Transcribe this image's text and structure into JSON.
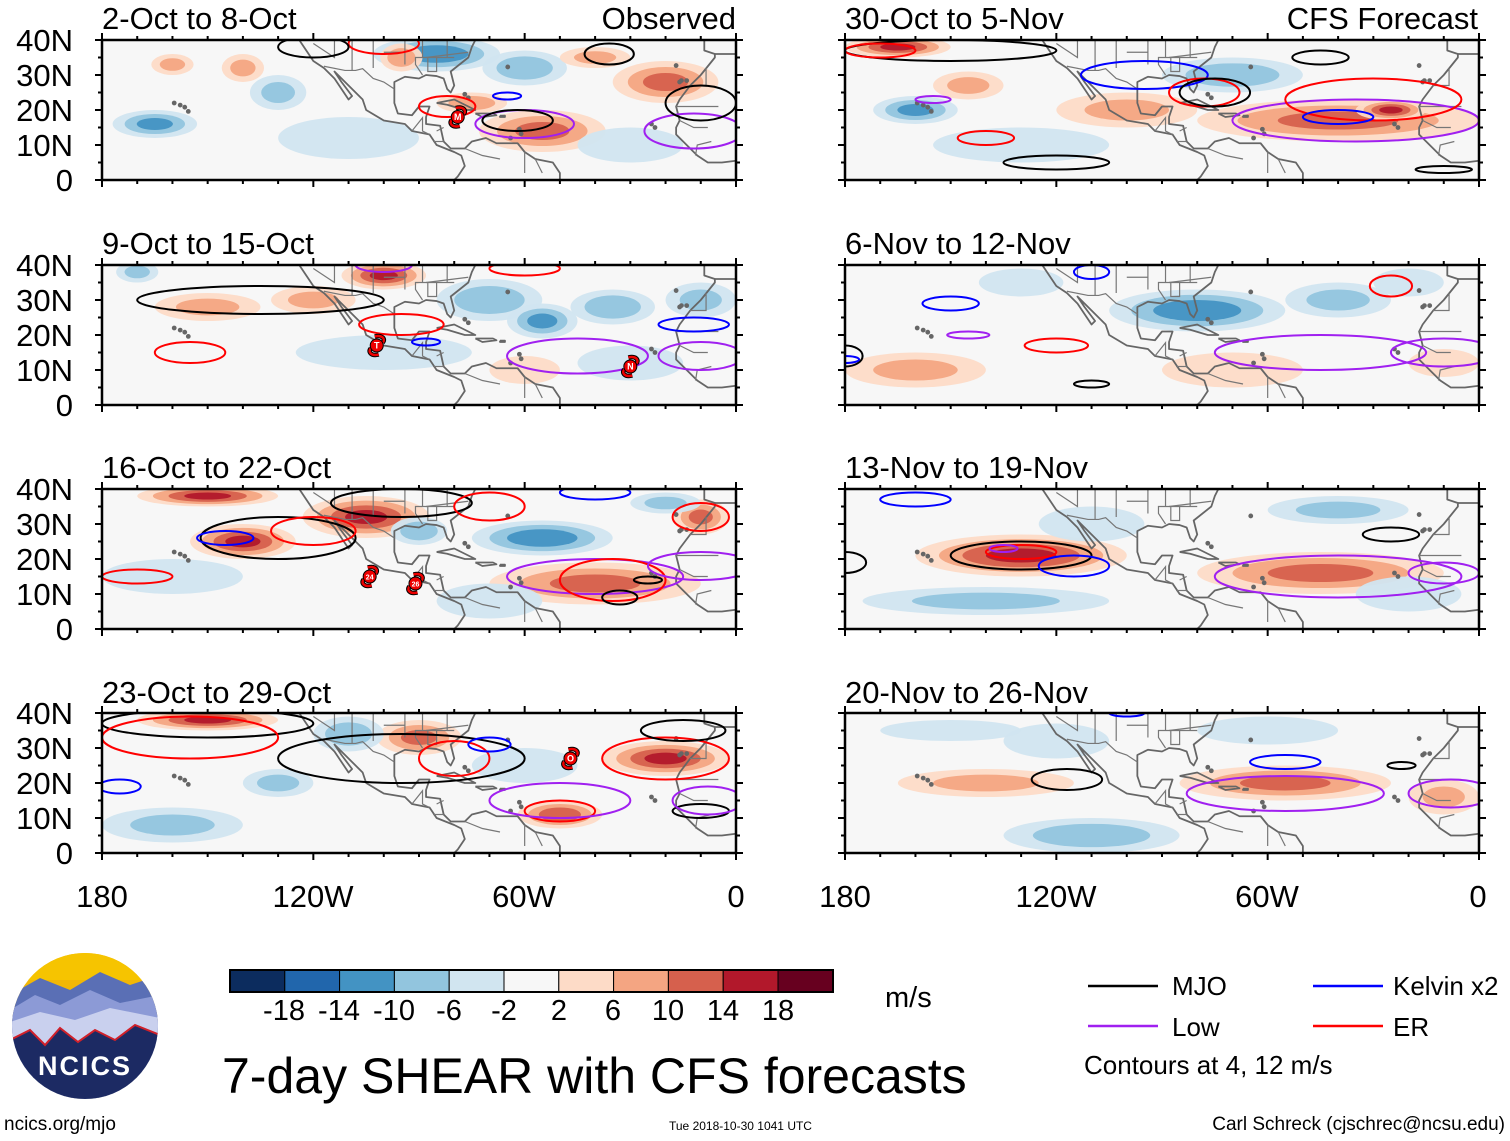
{
  "figure": {
    "title": "7-day SHEAR with CFS forecasts",
    "source_link": "ncics.org/mjo",
    "timestamp": "Tue 2018-10-30 1041 UTC",
    "author": "Carl Schreck (cjschrec@ncsu.edu)",
    "logo_text": "NCICS",
    "observed_label": "Observed",
    "forecast_label": "CFS Forecast"
  },
  "axes": {
    "y_labels": [
      "40N",
      "30N",
      "20N",
      "10N",
      "0"
    ],
    "x_labels": [
      "180",
      "120W",
      "60W",
      "0"
    ]
  },
  "colorbar": {
    "unit": "m/s",
    "labels": [
      "-18",
      "-14",
      "-10",
      "-6",
      "-2",
      "2",
      "6",
      "10",
      "14",
      "18"
    ],
    "colors": [
      "#0c2c5e",
      "#2166ac",
      "#4393c3",
      "#92c5de",
      "#d1e5f0",
      "#f7f7f7",
      "#fddbc7",
      "#f4a582",
      "#d6604d",
      "#b2182b",
      "#67001f"
    ]
  },
  "legend": {
    "items": [
      {
        "label": "MJO",
        "color": "#000000"
      },
      {
        "label": "Low",
        "color": "#a020f0"
      },
      {
        "label": "Kelvin x2",
        "color": "#0000ff"
      },
      {
        "label": "ER",
        "color": "#ff0000"
      }
    ],
    "note": "Contours at 4, 12 m/s"
  },
  "chart_data": {
    "type": "heatmap",
    "variable": "7-day vertical wind shear anomaly (m/s)",
    "lon_range": [
      "180",
      "0"
    ],
    "lat_range": [
      "0",
      "40N"
    ],
    "shading_format": "[lonW, lat, half-width deg lon, half-height deg lat, peak value m/s]",
    "contour_format": "[lonW, lat, half-width deg lon, half-height deg lat, filter]",
    "panels": [
      {
        "title": "2-Oct to 8-Oct",
        "shading": [
          [
            85,
            36,
            18,
            5,
            -12
          ],
          [
            60,
            32,
            12,
            5,
            -8
          ],
          [
            165,
            16,
            12,
            4,
            -10
          ],
          [
            130,
            25,
            8,
            5,
            -6
          ],
          [
            55,
            14,
            18,
            6,
            10
          ],
          [
            75,
            22,
            10,
            3,
            8
          ],
          [
            140,
            32,
            6,
            4,
            6
          ],
          [
            160,
            33,
            6,
            3,
            6
          ],
          [
            20,
            28,
            15,
            6,
            10
          ],
          [
            95,
            35,
            6,
            4,
            8
          ],
          [
            110,
            12,
            20,
            6,
            -4
          ],
          [
            40,
            35,
            10,
            3,
            6
          ],
          [
            30,
            10,
            15,
            5,
            -4
          ]
        ],
        "contours": [
          [
            36,
            36,
            7,
            3,
            "MJO"
          ],
          [
            82,
            21,
            8,
            3,
            "ER"
          ],
          [
            60,
            16,
            14,
            4,
            "Low"
          ],
          [
            62,
            17,
            10,
            3,
            "MJO"
          ],
          [
            12,
            14,
            14,
            5,
            "Low"
          ],
          [
            10,
            22,
            10,
            5,
            "MJO"
          ],
          [
            100,
            39,
            10,
            3,
            "ER"
          ],
          [
            120,
            38,
            10,
            3,
            "MJO"
          ],
          [
            65,
            24,
            4,
            1,
            "Kelvin"
          ]
        ],
        "storms": [
          {
            "id": "M",
            "lonW": 79,
            "lat": 18
          }
        ]
      },
      {
        "title": "9-Oct to 15-Oct",
        "shading": [
          [
            100,
            37,
            12,
            4,
            14
          ],
          [
            70,
            30,
            15,
            6,
            -8
          ],
          [
            55,
            24,
            10,
            5,
            -10
          ],
          [
            35,
            28,
            12,
            5,
            -8
          ],
          [
            150,
            28,
            15,
            4,
            6
          ],
          [
            120,
            30,
            12,
            4,
            6
          ],
          [
            100,
            15,
            25,
            5,
            -4
          ],
          [
            30,
            12,
            15,
            5,
            -4
          ],
          [
            170,
            38,
            6,
            3,
            -6
          ],
          [
            10,
            30,
            10,
            5,
            -6
          ],
          [
            60,
            10,
            10,
            4,
            4
          ]
        ],
        "contours": [
          [
            135,
            30,
            35,
            4,
            "MJO"
          ],
          [
            95,
            23,
            12,
            3,
            "ER"
          ],
          [
            155,
            15,
            10,
            3,
            "ER"
          ],
          [
            45,
            14,
            20,
            5,
            "Low"
          ],
          [
            10,
            14,
            12,
            4,
            "Low"
          ],
          [
            12,
            23,
            10,
            2,
            "Kelvin"
          ],
          [
            60,
            39,
            10,
            2,
            "ER"
          ],
          [
            100,
            40,
            8,
            2,
            "Low"
          ],
          [
            88,
            18,
            4,
            1,
            "Kelvin"
          ]
        ],
        "storms": [
          {
            "id": "T",
            "lonW": 102,
            "lat": 17
          },
          {
            "id": "N",
            "lonW": 30,
            "lat": 11
          }
        ]
      },
      {
        "title": "16-Oct to 22-Oct",
        "shading": [
          [
            150,
            38,
            20,
            3,
            14
          ],
          [
            140,
            25,
            15,
            5,
            14
          ],
          [
            105,
            32,
            18,
            6,
            14
          ],
          [
            55,
            26,
            20,
            5,
            -12
          ],
          [
            40,
            13,
            30,
            6,
            10
          ],
          [
            90,
            28,
            8,
            4,
            -8
          ],
          [
            160,
            15,
            20,
            5,
            -4
          ],
          [
            70,
            8,
            15,
            5,
            -4
          ],
          [
            10,
            32,
            8,
            5,
            10
          ],
          [
            20,
            36,
            10,
            3,
            -6
          ]
        ],
        "contours": [
          [
            130,
            26,
            22,
            6,
            "MJO"
          ],
          [
            120,
            28,
            12,
            4,
            "ER"
          ],
          [
            145,
            26,
            8,
            2,
            "Kelvin"
          ],
          [
            95,
            36,
            20,
            4,
            "MJO"
          ],
          [
            40,
            15,
            25,
            5,
            "Low"
          ],
          [
            35,
            14,
            15,
            6,
            "ER"
          ],
          [
            33,
            9,
            5,
            2,
            "MJO"
          ],
          [
            25,
            14,
            4,
            1,
            "MJO"
          ],
          [
            70,
            35,
            10,
            4,
            "ER"
          ],
          [
            40,
            39,
            10,
            2,
            "Kelvin"
          ],
          [
            170,
            15,
            10,
            2,
            "ER"
          ],
          [
            10,
            32,
            8,
            4,
            "ER"
          ],
          [
            10,
            18,
            15,
            4,
            "Low"
          ]
        ],
        "storms": [
          {
            "id": "24",
            "lonW": 104,
            "lat": 15
          },
          {
            "id": "26",
            "lonW": 91,
            "lat": 13
          }
        ]
      },
      {
        "title": "23-Oct to 29-Oct",
        "shading": [
          [
            150,
            38,
            20,
            3,
            14
          ],
          [
            90,
            33,
            12,
            5,
            10
          ],
          [
            20,
            27,
            18,
            5,
            14
          ],
          [
            50,
            11,
            12,
            4,
            12
          ],
          [
            110,
            34,
            10,
            5,
            -8
          ],
          [
            160,
            8,
            20,
            5,
            -6
          ],
          [
            60,
            25,
            15,
            5,
            -4
          ],
          [
            130,
            20,
            10,
            4,
            -6
          ]
        ],
        "contours": [
          [
            95,
            27,
            35,
            7,
            "MJO"
          ],
          [
            150,
            37,
            30,
            4,
            "MJO"
          ],
          [
            155,
            33,
            25,
            6,
            "ER"
          ],
          [
            80,
            27,
            10,
            5,
            "ER"
          ],
          [
            70,
            31,
            6,
            2,
            "Kelvin"
          ],
          [
            50,
            12,
            10,
            3,
            "ER"
          ],
          [
            50,
            15,
            20,
            5,
            "Low"
          ],
          [
            20,
            27,
            18,
            6,
            "ER"
          ],
          [
            10,
            12,
            8,
            2,
            "MJO"
          ],
          [
            15,
            35,
            12,
            3,
            "MJO"
          ],
          [
            175,
            19,
            6,
            2,
            "Kelvin"
          ],
          [
            8,
            15,
            10,
            4,
            "Low"
          ]
        ],
        "storms": [
          {
            "id": "O",
            "lonW": 47,
            "lat": 27
          }
        ]
      },
      {
        "title": "30-Oct to 5-Nov",
        "shading": [
          [
            165,
            38,
            15,
            3,
            14
          ],
          [
            160,
            20,
            12,
            4,
            -10
          ],
          [
            70,
            30,
            20,
            5,
            -8
          ],
          [
            40,
            17,
            40,
            6,
            10
          ],
          [
            25,
            20,
            10,
            3,
            14
          ],
          [
            100,
            20,
            20,
            5,
            6
          ],
          [
            130,
            10,
            25,
            5,
            -4
          ],
          [
            145,
            27,
            10,
            4,
            6
          ]
        ],
        "contours": [
          [
            150,
            37,
            30,
            3,
            "MJO"
          ],
          [
            170,
            37,
            10,
            2,
            "ER"
          ],
          [
            95,
            30,
            18,
            4,
            "Kelvin"
          ],
          [
            78,
            25,
            10,
            4,
            "ER"
          ],
          [
            75,
            25,
            10,
            4,
            "MJO"
          ],
          [
            35,
            17,
            35,
            6,
            "Low"
          ],
          [
            30,
            23,
            25,
            6,
            "ER"
          ],
          [
            40,
            18,
            10,
            2,
            "Kelvin"
          ],
          [
            140,
            12,
            8,
            2,
            "ER"
          ],
          [
            155,
            23,
            5,
            1,
            "Low"
          ],
          [
            45,
            35,
            8,
            2,
            "MJO"
          ],
          [
            120,
            5,
            15,
            2,
            "MJO"
          ],
          [
            10,
            3,
            8,
            1,
            "MJO"
          ]
        ],
        "storms": []
      },
      {
        "title": "6-Nov to 12-Nov",
        "shading": [
          [
            80,
            27,
            25,
            6,
            -12
          ],
          [
            40,
            30,
            15,
            5,
            -6
          ],
          [
            160,
            10,
            20,
            5,
            6
          ],
          [
            70,
            10,
            20,
            5,
            4
          ],
          [
            130,
            35,
            12,
            4,
            -4
          ],
          [
            20,
            35,
            10,
            4,
            -4
          ],
          [
            10,
            12,
            10,
            4,
            4
          ]
        ],
        "contours": [
          [
            150,
            29,
            8,
            2,
            "Kelvin"
          ],
          [
            145,
            20,
            6,
            1,
            "Low"
          ],
          [
            120,
            17,
            9,
            2,
            "ER"
          ],
          [
            45,
            15,
            30,
            5,
            "Low"
          ],
          [
            10,
            15,
            15,
            4,
            "Low"
          ],
          [
            25,
            34,
            6,
            3,
            "ER"
          ],
          [
            180,
            14,
            5,
            3,
            "MJO"
          ],
          [
            180,
            13,
            4,
            1,
            "Kelvin"
          ],
          [
            110,
            6,
            5,
            1,
            "MJO"
          ],
          [
            110,
            38,
            5,
            2,
            "Kelvin"
          ]
        ],
        "storms": []
      },
      {
        "title": "13-Nov to 19-Nov",
        "shading": [
          [
            130,
            21,
            30,
            6,
            14
          ],
          [
            45,
            16,
            35,
            6,
            10
          ],
          [
            140,
            8,
            35,
            4,
            -6
          ],
          [
            110,
            30,
            15,
            5,
            -4
          ],
          [
            40,
            34,
            20,
            4,
            -6
          ],
          [
            20,
            10,
            15,
            5,
            -4
          ]
        ],
        "contours": [
          [
            130,
            21,
            20,
            4,
            "MJO"
          ],
          [
            130,
            22,
            10,
            2,
            "ER"
          ],
          [
            115,
            18,
            10,
            3,
            "Kelvin"
          ],
          [
            135,
            23,
            4,
            1,
            "Low"
          ],
          [
            40,
            15,
            35,
            6,
            "Low"
          ],
          [
            25,
            27,
            8,
            2,
            "MJO"
          ],
          [
            10,
            16,
            10,
            3,
            "Low"
          ],
          [
            160,
            37,
            10,
            2,
            "Kelvin"
          ],
          [
            180,
            19,
            6,
            3,
            "MJO"
          ]
        ],
        "storms": []
      },
      {
        "title": "20-Nov to 26-Nov",
        "shading": [
          [
            140,
            20,
            25,
            4,
            6
          ],
          [
            55,
            20,
            30,
            5,
            10
          ],
          [
            110,
            5,
            25,
            5,
            -8
          ],
          [
            60,
            35,
            20,
            4,
            -4
          ],
          [
            120,
            32,
            15,
            5,
            -4
          ],
          [
            10,
            16,
            10,
            5,
            6
          ],
          [
            150,
            35,
            20,
            3,
            -4
          ]
        ],
        "contours": [
          [
            117,
            21,
            10,
            3,
            "MJO"
          ],
          [
            55,
            17,
            28,
            5,
            "Low"
          ],
          [
            55,
            26,
            10,
            2,
            "Kelvin"
          ],
          [
            22,
            25,
            4,
            1,
            "MJO"
          ],
          [
            8,
            17,
            12,
            4,
            "Low"
          ],
          [
            100,
            40,
            5,
            1,
            "Kelvin"
          ]
        ],
        "storms": []
      }
    ]
  }
}
